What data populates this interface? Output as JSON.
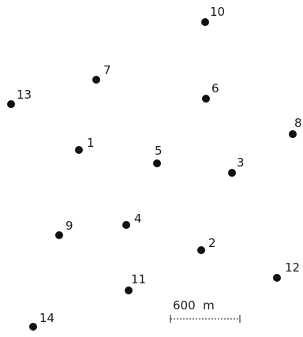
{
  "map": {
    "stations": [
      {
        "id": "station-1",
        "label": "1"
      },
      {
        "id": "station-2",
        "label": "2"
      },
      {
        "id": "station-3",
        "label": "3"
      },
      {
        "id": "station-4",
        "label": "4"
      },
      {
        "id": "station-5",
        "label": "5"
      },
      {
        "id": "station-6",
        "label": "6"
      },
      {
        "id": "station-7",
        "label": "7"
      },
      {
        "id": "station-8",
        "label": "8"
      },
      {
        "id": "station-9",
        "label": "9"
      },
      {
        "id": "station-10",
        "label": "10"
      },
      {
        "id": "station-11",
        "label": "11"
      },
      {
        "id": "station-12",
        "label": "12"
      },
      {
        "id": "station-13",
        "label": "13"
      },
      {
        "id": "station-14",
        "label": "14"
      }
    ],
    "scale_bar": {
      "label": "600  m",
      "distance_m": 600
    },
    "colors": {
      "dot": "#111111",
      "text": "#1a1a1a",
      "background": "#ffffff"
    }
  }
}
